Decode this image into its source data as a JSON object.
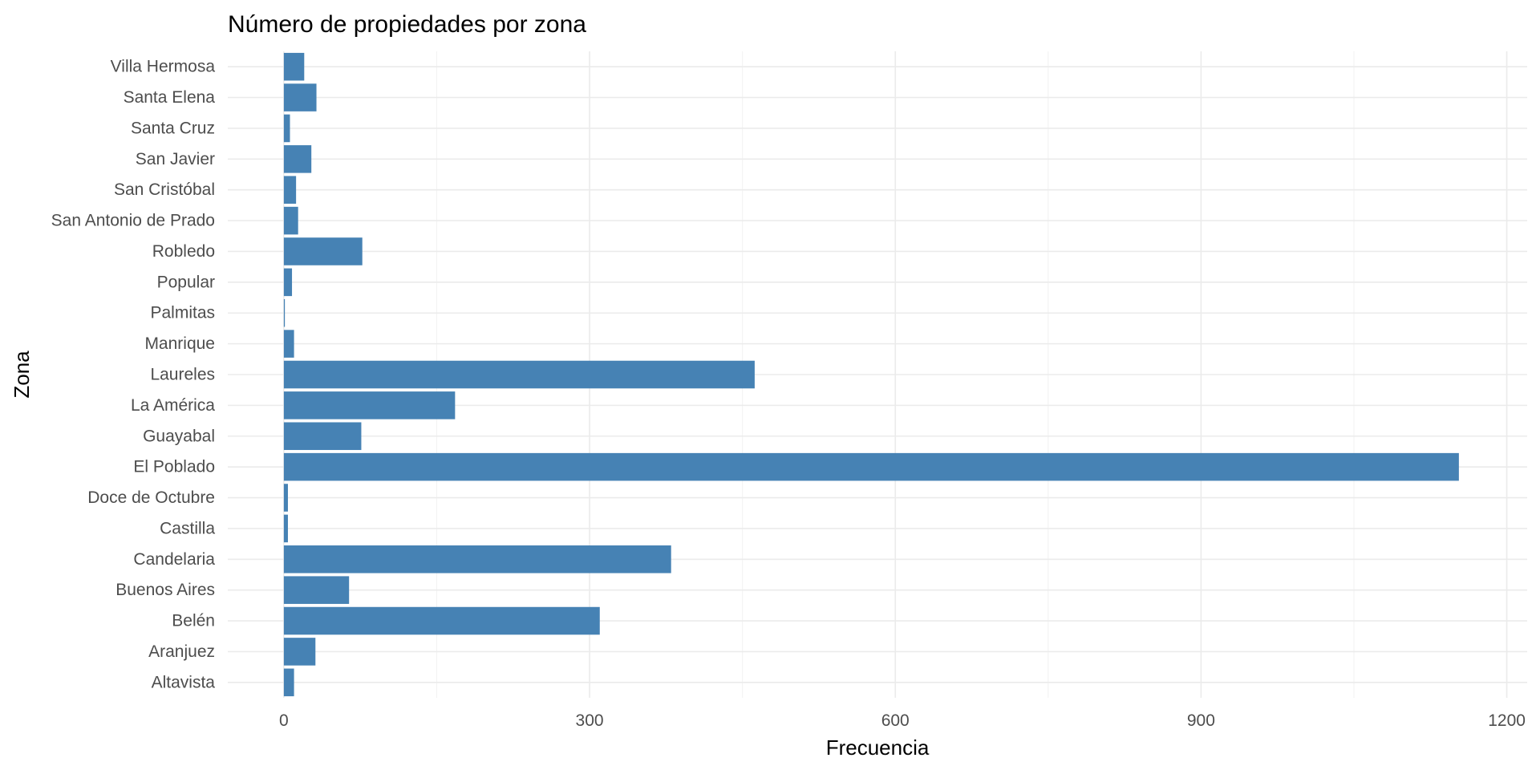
{
  "chart_data": {
    "type": "bar",
    "orientation": "horizontal",
    "title": "Número de propiedades por zona",
    "xlabel": "Frecuencia",
    "ylabel": "Zona",
    "categories": [
      "Altavista",
      "Aranjuez",
      "Belén",
      "Buenos Aires",
      "Candelaria",
      "Castilla",
      "Doce de Octubre",
      "El Poblado",
      "Guayabal",
      "La América",
      "Laureles",
      "Manrique",
      "Palmitas",
      "Popular",
      "Robledo",
      "San Antonio de Prado",
      "San Cristóbal",
      "San Javier",
      "Santa Cruz",
      "Santa Elena",
      "Villa Hermosa"
    ],
    "values": [
      10,
      31,
      310,
      64,
      380,
      4,
      4,
      1153,
      76,
      168,
      462,
      10,
      1,
      8,
      77,
      14,
      12,
      27,
      6,
      32,
      20
    ],
    "xlim": [
      -55,
      1220
    ],
    "xticks": [
      0,
      300,
      600,
      900,
      1200
    ],
    "grid": true,
    "legend": "none",
    "bar_color": "#4682b4"
  }
}
